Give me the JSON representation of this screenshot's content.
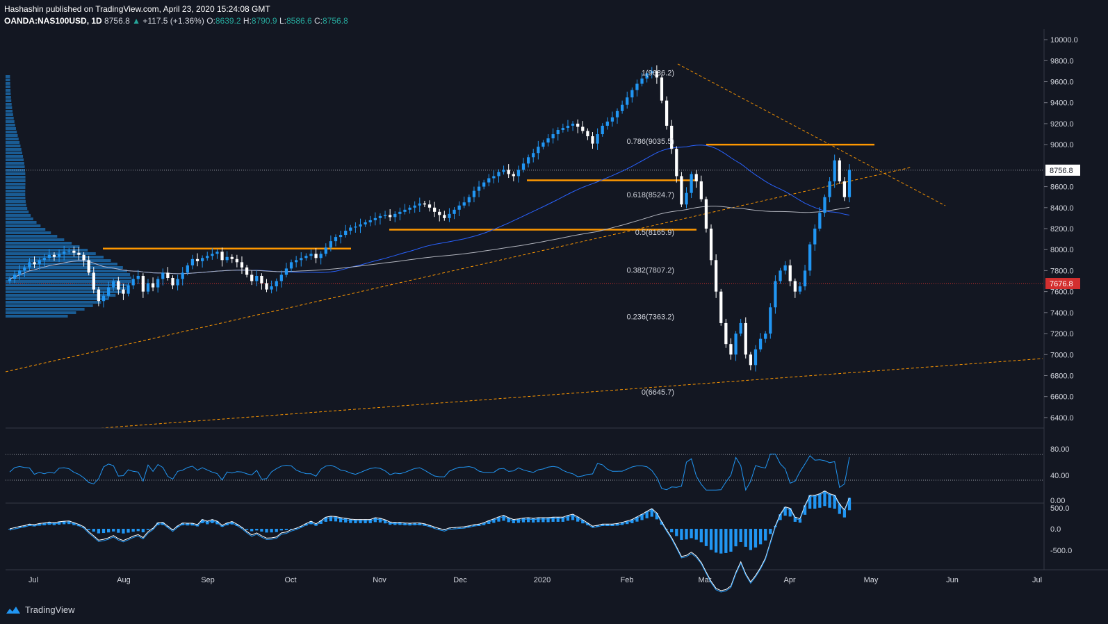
{
  "header": {
    "publisher": "Hashashin published on TradingView.com, April 23, 2020 15:24:08 GMT",
    "symbol": "OANDA:NAS100USD, 1D",
    "last": "8756.8",
    "change": "+117.5 (+1.36%)",
    "o_label": "O:",
    "o_value": "8639.2",
    "h_label": "H:",
    "h_value": "8790.9",
    "l_label": "L:",
    "l_value": "8586.6",
    "c_label": "C:",
    "c_value": "8756.8"
  },
  "footer": {
    "brand": "TradingView"
  },
  "colors": {
    "background": "#131722",
    "up": "#2196f3",
    "down": "#ffffff",
    "orange": "#ff9800",
    "ma_blue": "#2962ff",
    "ma_white": "#b2b5be",
    "last_price_bg": "#ffffff",
    "marker_red": "#d32f2f"
  },
  "chart_data": {
    "type": "candlestick",
    "x_labels": [
      "Jul",
      "Aug",
      "Sep",
      "Oct",
      "Nov",
      "Dec",
      "2020",
      "Feb",
      "Mar",
      "Apr",
      "May",
      "Jun",
      "Jul"
    ],
    "y_ticks": [
      "10000.0",
      "9800.0",
      "9600.0",
      "9400.0",
      "9200.0",
      "9000.0",
      "8600.0",
      "8400.0",
      "8200.0",
      "8000.0",
      "7800.0",
      "7600.0",
      "7400.0",
      "7200.0",
      "7000.0",
      "6800.0",
      "6600.0",
      "6400.0"
    ],
    "ylim": [
      6300,
      10100
    ],
    "last_price": "8756.8",
    "red_marker": "7676.8",
    "fib_levels": [
      {
        "label": "1(9686.2)",
        "value": 9686.2
      },
      {
        "label": "0.786(9035.5)",
        "value": 9035.5
      },
      {
        "label": "0.618(8524.7)",
        "value": 8524.7
      },
      {
        "label": "0.5(8165.9)",
        "value": 8165.9
      },
      {
        "label": "0.382(7807.2)",
        "value": 7807.2
      },
      {
        "label": "0.236(7363.2)",
        "value": 7363.2
      },
      {
        "label": "0(6645.7)",
        "value": 6645.7
      }
    ],
    "horizontal_levels": [
      8010,
      8190,
      8660,
      9000
    ],
    "closes": [
      7720,
      7760,
      7800,
      7830,
      7880,
      7860,
      7900,
      7920,
      7950,
      7930,
      7960,
      7980,
      7990,
      7970,
      7950,
      7900,
      7780,
      7620,
      7510,
      7560,
      7640,
      7700,
      7620,
      7580,
      7660,
      7720,
      7750,
      7600,
      7680,
      7640,
      7720,
      7780,
      7730,
      7660,
      7720,
      7780,
      7850,
      7910,
      7890,
      7920,
      7940,
      7960,
      7980,
      7900,
      7930,
      7910,
      7880,
      7830,
      7760,
      7700,
      7750,
      7680,
      7620,
      7650,
      7700,
      7760,
      7820,
      7880,
      7900,
      7920,
      7940,
      7960,
      7920,
      7960,
      8020,
      8080,
      8120,
      8140,
      8180,
      8210,
      8220,
      8240,
      8260,
      8280,
      8300,
      8320,
      8330,
      8310,
      8340,
      8360,
      8380,
      8400,
      8420,
      8440,
      8430,
      8400,
      8360,
      8330,
      8300,
      8340,
      8380,
      8420,
      8450,
      8500,
      8560,
      8600,
      8640,
      8680,
      8700,
      8740,
      8760,
      8720,
      8700,
      8760,
      8820,
      8880,
      8920,
      8980,
      9020,
      9060,
      9100,
      9140,
      9160,
      9180,
      9200,
      9170,
      9130,
      9080,
      9010,
      9100,
      9180,
      9220,
      9260,
      9320,
      9380,
      9450,
      9520,
      9580,
      9630,
      9680,
      9700,
      9640,
      9420,
      9180,
      8960,
      8700,
      8430,
      8540,
      8720,
      8650,
      8480,
      8200,
      7900,
      7600,
      7300,
      7100,
      7000,
      7200,
      7300,
      7000,
      6900,
      7050,
      7150,
      7200,
      7450,
      7700,
      7800,
      7850,
      7700,
      7600,
      7650,
      7800,
      8050,
      8200,
      8350,
      8500,
      8650,
      8850,
      8650,
      8500,
      8760
    ]
  }
}
